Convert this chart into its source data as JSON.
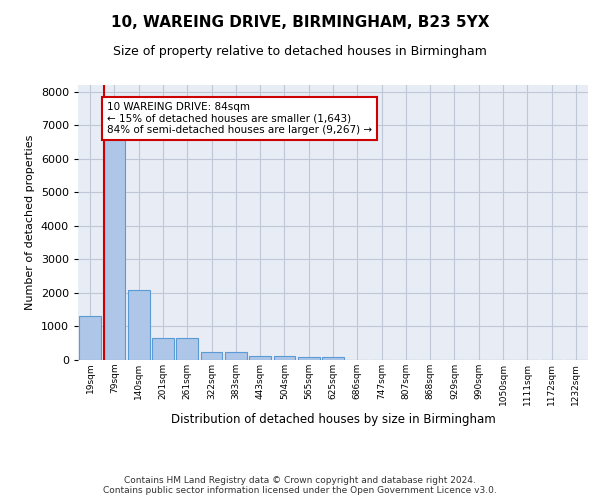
{
  "title": "10, WAREING DRIVE, BIRMINGHAM, B23 5YX",
  "subtitle": "Size of property relative to detached houses in Birmingham",
  "xlabel": "Distribution of detached houses by size in Birmingham",
  "ylabel": "Number of detached properties",
  "footer_line1": "Contains HM Land Registry data © Crown copyright and database right 2024.",
  "footer_line2": "Contains public sector information licensed under the Open Government Licence v3.0.",
  "bin_labels": [
    "19sqm",
    "79sqm",
    "140sqm",
    "201sqm",
    "261sqm",
    "322sqm",
    "383sqm",
    "443sqm",
    "504sqm",
    "565sqm",
    "625sqm",
    "686sqm",
    "747sqm",
    "807sqm",
    "868sqm",
    "929sqm",
    "990sqm",
    "1050sqm",
    "1111sqm",
    "1172sqm",
    "1232sqm"
  ],
  "bar_values": [
    1300,
    6600,
    2080,
    650,
    650,
    250,
    250,
    130,
    130,
    80,
    80,
    0,
    0,
    0,
    0,
    0,
    0,
    0,
    0,
    0,
    0
  ],
  "bar_color": "#aec6e8",
  "bar_edge_color": "#5b9bd5",
  "property_label": "10 WAREING DRIVE: 84sqm",
  "pct_smaller": 15,
  "n_smaller": 1643,
  "pct_larger_semi": 84,
  "n_larger_semi": 9267,
  "vline_bin_index": 1,
  "annotation_box_color": "#cc0000",
  "ylim": [
    0,
    8200
  ],
  "yticks": [
    0,
    1000,
    2000,
    3000,
    4000,
    5000,
    6000,
    7000,
    8000
  ],
  "grid_color": "#c0c8d8",
  "plot_bg_color": "#e8ecf4"
}
